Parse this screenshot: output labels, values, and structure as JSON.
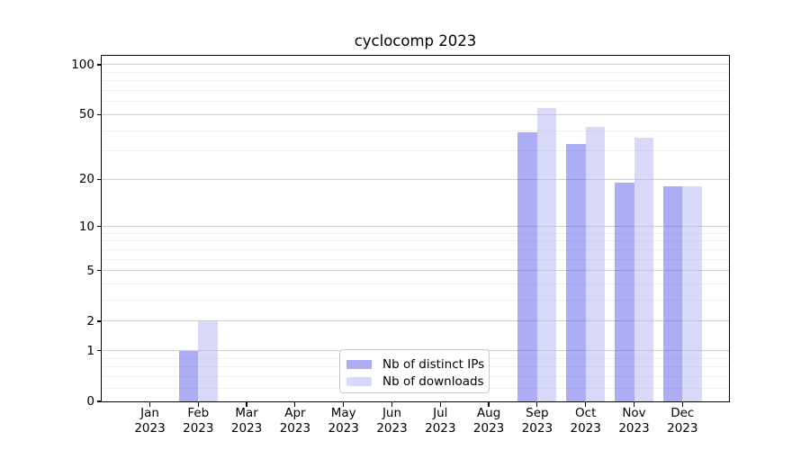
{
  "chart_data": {
    "type": "bar",
    "title": "cyclocomp 2023",
    "categories": [
      "Jan",
      "Feb",
      "Mar",
      "Apr",
      "May",
      "Jun",
      "Jul",
      "Aug",
      "Sep",
      "Oct",
      "Nov",
      "Dec"
    ],
    "year_label": "2023",
    "series": [
      {
        "name": "Nb of distinct IPs",
        "color": "rgba(80,80,235,0.47)",
        "values": [
          0,
          1,
          0,
          0,
          0,
          0,
          0,
          0,
          39,
          33,
          19,
          18
        ]
      },
      {
        "name": "Nb of downloads",
        "color": "rgba(180,180,243,0.52)",
        "values": [
          0,
          2,
          0,
          0,
          0,
          0,
          0,
          0,
          55,
          42,
          36,
          18
        ]
      }
    ],
    "scale": "log1p",
    "y_ticks": [
      0,
      1,
      2,
      5,
      10,
      20,
      50,
      100
    ],
    "y_minor_gridlines": [
      0.2,
      0.4,
      0.6,
      0.8,
      3,
      4,
      6,
      7,
      8,
      9,
      30,
      40,
      60,
      70,
      80,
      90
    ],
    "ylim": [
      0,
      113
    ],
    "xlabel": "",
    "ylabel": "",
    "grid": true,
    "legend_position": "bottom-center",
    "colors": {
      "axis": "#000000",
      "major_grid": "#cfcfcf",
      "minor_grid": "#efefef",
      "background": "#ffffff"
    }
  }
}
